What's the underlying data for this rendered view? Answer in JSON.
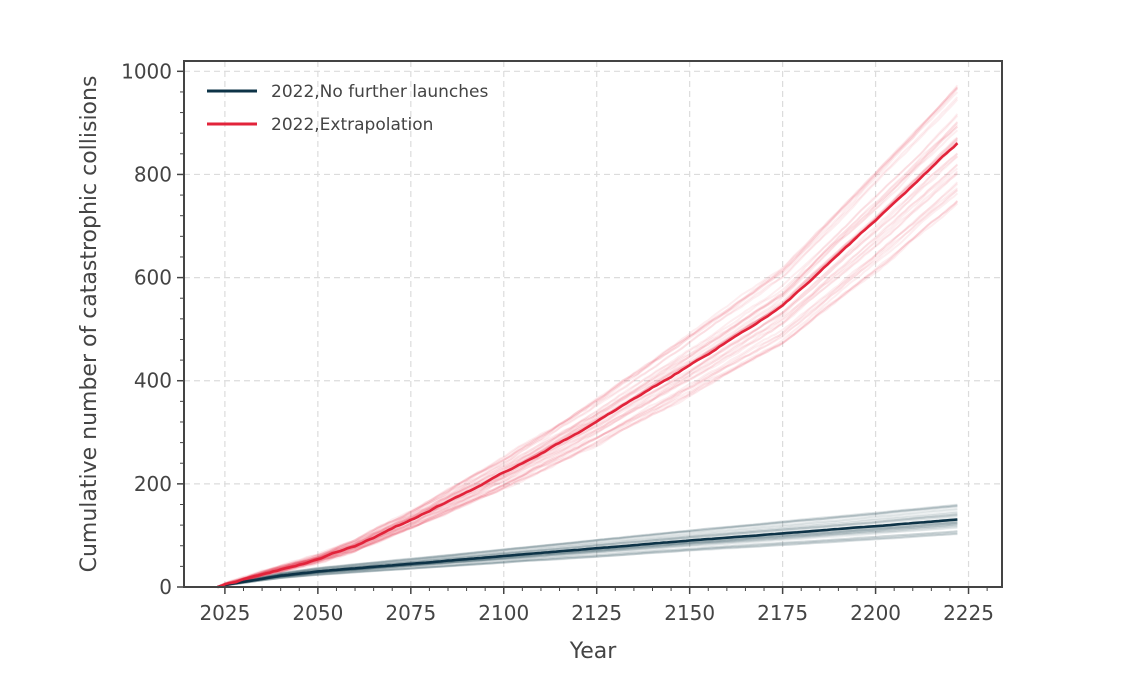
{
  "chart_data": {
    "type": "line",
    "title": "",
    "xlabel": "Year",
    "ylabel": "Cumulative number of catastrophic collisions",
    "xlim": [
      2014,
      2234
    ],
    "ylim": [
      0,
      1020
    ],
    "x_ticks": [
      2025,
      2050,
      2075,
      2100,
      2125,
      2150,
      2175,
      2200,
      2225
    ],
    "y_ticks": [
      0,
      200,
      400,
      600,
      800,
      1000
    ],
    "grid": true,
    "legend_position": "top-left",
    "series": [
      {
        "name": "2022,No further launches",
        "color": "#0d3347",
        "x": [
          2023,
          2025,
          2030,
          2040,
          2050,
          2060,
          2075,
          2100,
          2125,
          2150,
          2175,
          2200,
          2222
        ],
        "values": [
          0,
          4,
          10,
          22,
          30,
          36,
          45,
          60,
          75,
          90,
          104,
          118,
          131
        ]
      },
      {
        "name": "2022,Extrapolation",
        "color": "#e2233a",
        "x": [
          2023,
          2025,
          2030,
          2040,
          2050,
          2060,
          2075,
          2100,
          2125,
          2150,
          2175,
          2200,
          2222
        ],
        "values": [
          0,
          5,
          15,
          35,
          55,
          80,
          130,
          220,
          320,
          430,
          545,
          710,
          860
        ]
      }
    ]
  }
}
